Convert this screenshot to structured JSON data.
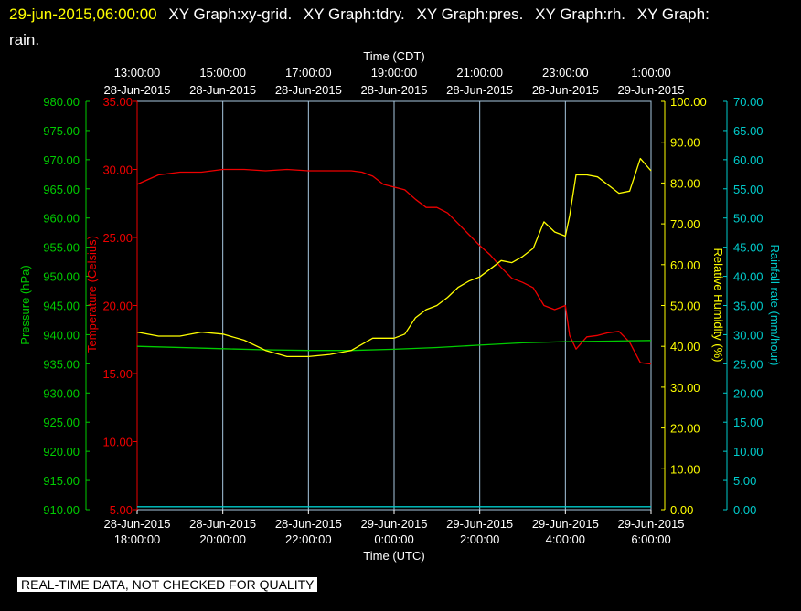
{
  "header": {
    "timestamp": "29-jun-2015,06:00:00",
    "graphs": [
      "XY Graph:xy-grid.",
      "XY Graph:tdry.",
      "XY Graph:pres.",
      "XY Graph:rh.",
      "XY Graph:",
      "rain."
    ]
  },
  "footer": {
    "quality_note": "REAL-TIME DATA, NOT CHECKED FOR QUALITY"
  },
  "colors": {
    "pressure": "#00cc00",
    "temperature": "#ee0000",
    "humidity": "#ffff00",
    "rain": "#00cccc",
    "grid": "#a8c8e0",
    "axis_text": "#ffffff"
  },
  "chart_data": {
    "type": "line",
    "top_axis": {
      "label": "Time (CDT)",
      "ticks": [
        {
          "time": "13:00:00",
          "date": "28-Jun-2015"
        },
        {
          "time": "15:00:00",
          "date": "28-Jun-2015"
        },
        {
          "time": "17:00:00",
          "date": "28-Jun-2015"
        },
        {
          "time": "19:00:00",
          "date": "28-Jun-2015"
        },
        {
          "time": "21:00:00",
          "date": "28-Jun-2015"
        },
        {
          "time": "23:00:00",
          "date": "28-Jun-2015"
        },
        {
          "time": "1:00:00",
          "date": "29-Jun-2015"
        }
      ]
    },
    "bottom_axis": {
      "label": "Time (UTC)",
      "ticks": [
        {
          "date": "28-Jun-2015",
          "time": "18:00:00"
        },
        {
          "date": "28-Jun-2015",
          "time": "20:00:00"
        },
        {
          "date": "28-Jun-2015",
          "time": "22:00:00"
        },
        {
          "date": "29-Jun-2015",
          "time": "0:00:00"
        },
        {
          "date": "29-Jun-2015",
          "time": "2:00:00"
        },
        {
          "date": "29-Jun-2015",
          "time": "4:00:00"
        },
        {
          "date": "29-Jun-2015",
          "time": "6:00:00"
        }
      ],
      "range_hours_utc": [
        18,
        30
      ]
    },
    "pressure_axis": {
      "label": "Pressure (hPa)",
      "ylim": [
        910,
        980
      ],
      "ticks": [
        "980.00",
        "975.00",
        "970.00",
        "965.00",
        "960.00",
        "955.00",
        "950.00",
        "945.00",
        "940.00",
        "935.00",
        "930.00",
        "925.00",
        "920.00",
        "915.00",
        "910.00"
      ]
    },
    "temperature_axis": {
      "label": "Temperature (Celsius)",
      "ylim": [
        5,
        35
      ],
      "ticks": [
        "35.00",
        "30.00",
        "25.00",
        "20.00",
        "15.00",
        "10.00",
        "5.00"
      ]
    },
    "humidity_axis": {
      "label": "Relative Humidity (%)",
      "ylim": [
        0,
        100
      ],
      "ticks": [
        "100.00",
        "90.00",
        "80.00",
        "70.00",
        "60.00",
        "50.00",
        "40.00",
        "30.00",
        "20.00",
        "10.00",
        "0.00"
      ]
    },
    "rain_axis": {
      "label": "Rainfall rate (mm/hour)",
      "ylim": [
        0,
        70
      ],
      "ticks": [
        "70.00",
        "65.00",
        "60.00",
        "55.00",
        "50.00",
        "45.00",
        "40.00",
        "35.00",
        "30.00",
        "25.00",
        "20.00",
        "15.00",
        "10.00",
        "5.00",
        "0.00"
      ]
    },
    "series": [
      {
        "name": "Temperature",
        "axis": "temperature",
        "x": [
          18,
          18.5,
          19,
          19.5,
          20,
          20.5,
          21,
          21.5,
          22,
          22.5,
          23,
          23.25,
          23.5,
          23.75,
          24,
          24.25,
          24.5,
          24.75,
          25,
          25.25,
          25.5,
          25.75,
          26,
          26.25,
          26.5,
          26.75,
          27,
          27.25,
          27.5,
          27.75,
          28,
          28.1,
          28.25,
          28.5,
          28.75,
          29,
          29.25,
          29.5,
          29.75,
          30
        ],
        "y": [
          28.9,
          29.6,
          29.8,
          29.8,
          30.0,
          30.0,
          29.9,
          30.0,
          29.9,
          29.9,
          29.9,
          29.8,
          29.5,
          28.9,
          28.7,
          28.5,
          27.8,
          27.2,
          27.2,
          26.8,
          26.0,
          25.2,
          24.4,
          23.7,
          22.8,
          22.0,
          21.7,
          21.3,
          20.0,
          19.7,
          20.0,
          17.8,
          16.8,
          17.7,
          17.8,
          18.0,
          18.1,
          17.3,
          15.8,
          15.7
        ]
      },
      {
        "name": "Pressure",
        "axis": "pressure",
        "x": [
          18,
          20,
          21,
          22,
          23,
          24,
          25,
          26,
          27,
          28,
          29,
          30
        ],
        "y": [
          938.0,
          937.6,
          937.4,
          937.3,
          937.3,
          937.5,
          937.8,
          938.2,
          938.6,
          938.8,
          938.9,
          939.0
        ]
      },
      {
        "name": "Relative Humidity",
        "axis": "humidity",
        "x": [
          18,
          18.5,
          19,
          19.5,
          20,
          20.5,
          21,
          21.5,
          22,
          22.5,
          23,
          23.5,
          24,
          24.25,
          24.5,
          24.75,
          25,
          25.25,
          25.5,
          25.75,
          26,
          26.25,
          26.5,
          26.75,
          27,
          27.25,
          27.5,
          27.75,
          28,
          28.1,
          28.25,
          28.5,
          28.75,
          29,
          29.25,
          29.5,
          29.75,
          30
        ],
        "y": [
          43.5,
          42.5,
          42.5,
          43.5,
          43.0,
          41.5,
          39.0,
          37.5,
          37.5,
          38.0,
          39.0,
          42.0,
          42.0,
          43.0,
          47.0,
          49.0,
          50.0,
          52.0,
          54.5,
          56.0,
          57.0,
          59.0,
          61.0,
          60.5,
          62.0,
          64.0,
          70.5,
          68.0,
          67.0,
          72.0,
          82.0,
          82.0,
          81.5,
          79.5,
          77.5,
          78.0,
          86.0,
          83.0
        ]
      },
      {
        "name": "Rainfall rate",
        "axis": "rain",
        "x": [
          18,
          30
        ],
        "y": [
          0.5,
          0.5
        ]
      }
    ],
    "grid": true
  }
}
